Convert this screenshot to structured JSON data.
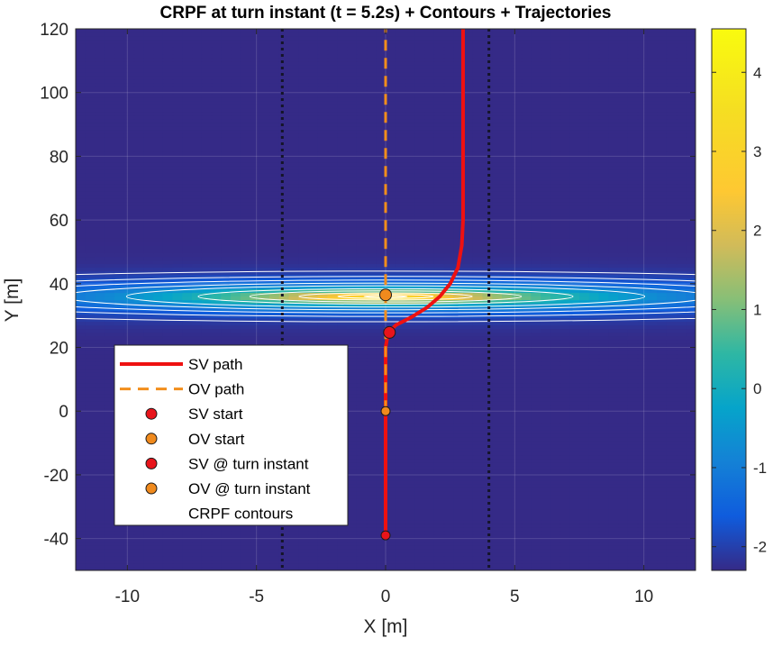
{
  "chart_data": {
    "type": "heatmap",
    "title": "CRPF at turn instant (t = 5.2s) + Contours + Trajectories",
    "xlabel": "X [m]",
    "ylabel": "Y [m]",
    "xlim": [
      -12,
      12
    ],
    "ylim": [
      -50,
      120
    ],
    "xticks": [
      -10,
      -5,
      0,
      5,
      10
    ],
    "yticks": [
      -40,
      -20,
      0,
      20,
      40,
      60,
      80,
      100,
      120
    ],
    "grid": true,
    "colorbar": {
      "range": [
        -2.3,
        4.55
      ],
      "ticks": [
        -2,
        -1,
        0,
        1,
        2,
        3,
        4
      ],
      "colormap": "parula"
    },
    "field": {
      "peak": [
        0,
        36
      ],
      "peak_value": 4.55,
      "floor_value": -2.3
    },
    "lane_markings_x": [
      -4,
      4
    ],
    "contour_levels": [
      -2.05,
      -1.8,
      -1.5,
      -1.1,
      -0.6,
      0.2,
      1.0,
      2.0,
      3.0,
      3.8
    ],
    "series": [
      {
        "name": "SV path",
        "style": "solid",
        "color": "#ee1111",
        "x": [
          0,
          0,
          0,
          0,
          0.1,
          0.4,
          1.0,
          1.6,
          2.1,
          2.5,
          2.8,
          2.95,
          3.0,
          3.0,
          3.0
        ],
        "y": [
          -39,
          -20,
          0,
          20,
          24.7,
          27,
          29.5,
          32.5,
          36,
          40,
          45,
          52,
          60,
          90,
          120
        ]
      },
      {
        "name": "OV path",
        "style": "dashed",
        "color": "#f28e1c",
        "x": [
          0,
          0
        ],
        "y": [
          0,
          120
        ]
      }
    ],
    "markers": [
      {
        "name": "SV start",
        "x": 0,
        "y": -39,
        "color": "#e8141b",
        "size": "small"
      },
      {
        "name": "OV start",
        "x": 0,
        "y": 0,
        "color": "#f08a1d",
        "size": "small"
      },
      {
        "name": "SV @ turn instant",
        "x": 0.15,
        "y": 24.7,
        "color": "#e8141b",
        "size": "large"
      },
      {
        "name": "OV @ turn instant",
        "x": 0,
        "y": 36.5,
        "color": "#f08a1d",
        "size": "large"
      }
    ],
    "legend": {
      "placement": "lower-left",
      "entries": [
        "SV path",
        "OV path",
        "SV start",
        "OV start",
        "SV @ turn instant",
        "OV @ turn instant",
        "CRPF contours"
      ]
    },
    "colors": {
      "sv": "#ee1111",
      "ov": "#f28e1c",
      "contour": "#ffffff",
      "lane": "#141428"
    }
  }
}
